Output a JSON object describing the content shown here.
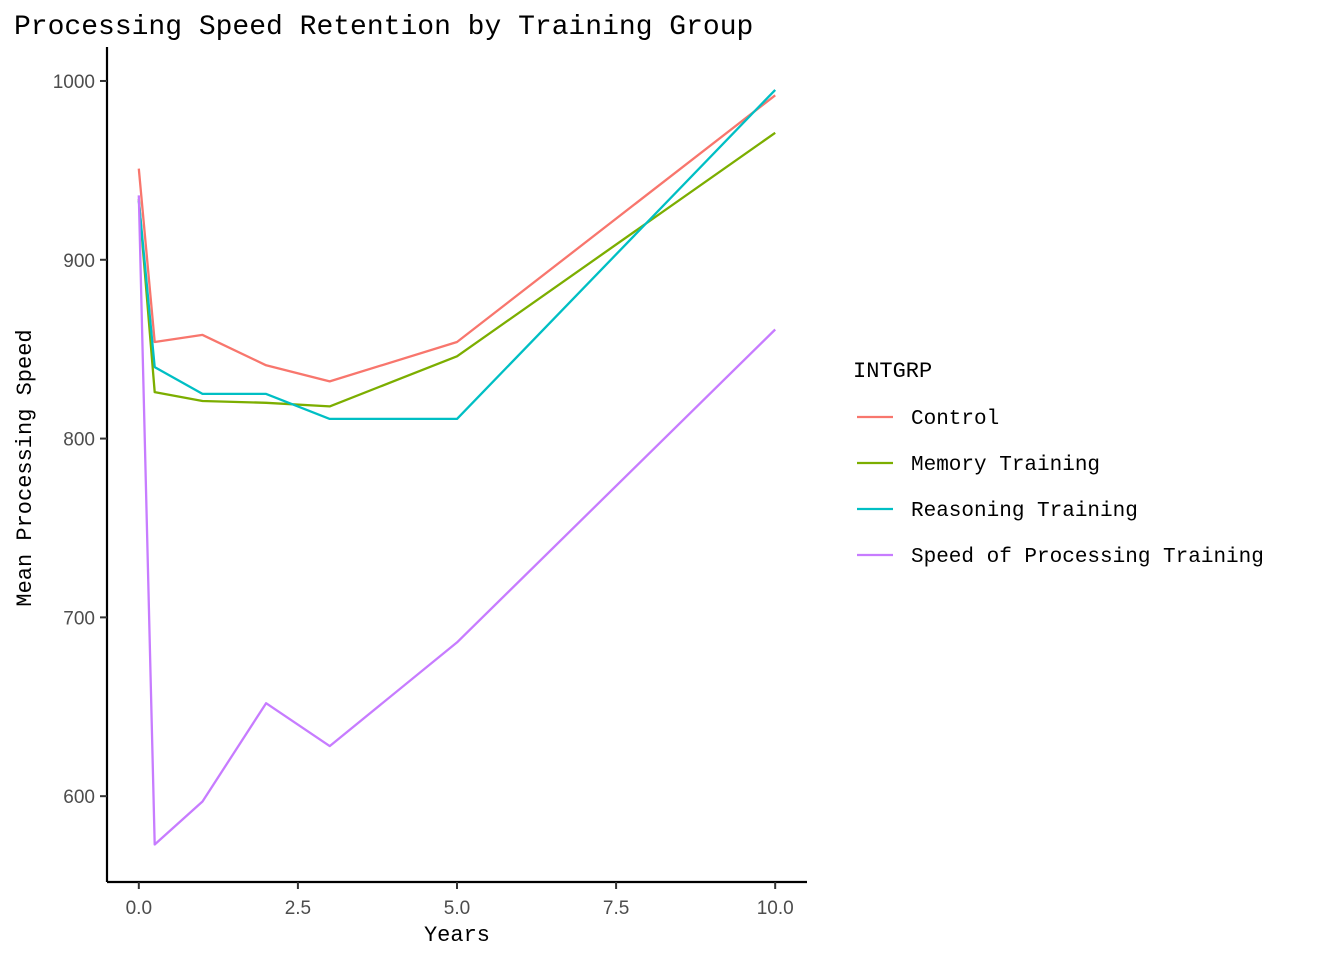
{
  "chart_data": {
    "type": "line",
    "title": "Processing Speed Retention by Training Group",
    "xlabel": "Years",
    "ylabel": "Mean Processing Speed",
    "xlim": [
      -0.5,
      10.5
    ],
    "ylim": [
      552,
      1019
    ],
    "x_ticks": [
      0,
      2.5,
      5,
      7.5,
      10
    ],
    "x_tick_labels": [
      "0.0",
      "2.5",
      "5.0",
      "7.5",
      "10.0"
    ],
    "y_ticks": [
      600,
      700,
      800,
      900,
      1000
    ],
    "y_tick_labels": [
      "600",
      "700",
      "800",
      "900",
      "1000"
    ],
    "grid": false,
    "legend": {
      "title": "INTGRP",
      "position": "right"
    },
    "x": [
      0,
      0.25,
      1,
      2,
      3,
      5,
      10
    ],
    "series": [
      {
        "name": "Control",
        "color": "#F8766D",
        "values": [
          951,
          854,
          858,
          841,
          832,
          854,
          992
        ]
      },
      {
        "name": "Memory Training",
        "color": "#7CAE00",
        "values": [
          934,
          826,
          821,
          820,
          818,
          846,
          971
        ]
      },
      {
        "name": "Reasoning Training",
        "color": "#00BFC4",
        "values": [
          933,
          840,
          825,
          825,
          811,
          811,
          995
        ]
      },
      {
        "name": "Speed of Processing Training",
        "color": "#C77CFF",
        "values": [
          936,
          573,
          597,
          652,
          628,
          686,
          861
        ]
      }
    ]
  }
}
